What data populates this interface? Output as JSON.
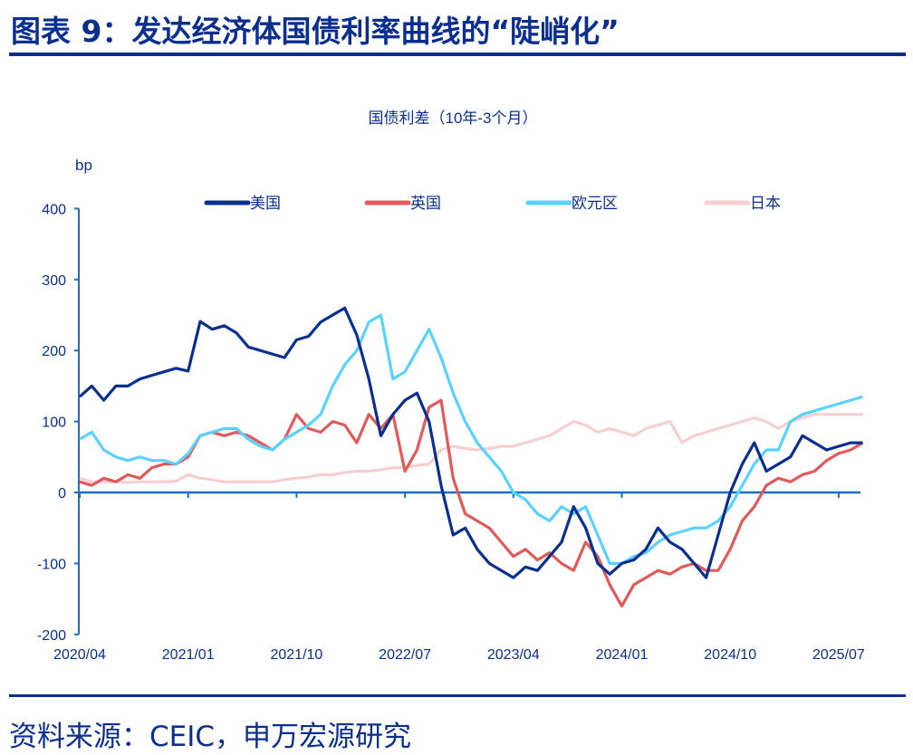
{
  "header": {
    "title": "图表 9：发达经济体国债利率曲线的“陡峭化”"
  },
  "footer": {
    "source": "资料来源：CEIC，申万宏源研究"
  },
  "chart_data": {
    "type": "line",
    "title": "国债利差（10年-3个月）",
    "ylabel": "bp",
    "ylim": [
      -200,
      400
    ],
    "yticks": [
      400,
      300,
      200,
      100,
      0,
      -100,
      -200
    ],
    "x_start": "2020/04",
    "x_end": "2025/09",
    "x_frequency": "monthly",
    "xticks": [
      "2020/04",
      "2021/01",
      "2021/10",
      "2022/07",
      "2023/04",
      "2024/01",
      "2024/10",
      "2025/07"
    ],
    "grid": false,
    "legend": "top",
    "series": [
      {
        "name": "美国",
        "color": "#0a2f8f",
        "values": [
          135,
          150,
          130,
          150,
          150,
          160,
          165,
          170,
          175,
          171,
          241,
          230,
          235,
          225,
          205,
          200,
          195,
          190,
          215,
          220,
          240,
          250,
          260,
          222,
          160,
          80,
          110,
          130,
          140,
          100,
          10,
          -60,
          -50,
          -80,
          -100,
          -110,
          -120,
          -105,
          -110,
          -90,
          -70,
          -20,
          -50,
          -100,
          -115,
          -100,
          -95,
          -80,
          -50,
          -70,
          -80,
          -100,
          -120,
          -60,
          0,
          40,
          70,
          30,
          40,
          50,
          80,
          70,
          60,
          65,
          70,
          70
        ]
      },
      {
        "name": "英国",
        "color": "#e05a5a",
        "values": [
          15,
          10,
          20,
          15,
          25,
          20,
          35,
          40,
          40,
          50,
          80,
          85,
          80,
          85,
          80,
          70,
          60,
          75,
          110,
          90,
          85,
          100,
          95,
          70,
          110,
          90,
          110,
          30,
          60,
          120,
          130,
          20,
          -30,
          -40,
          -50,
          -70,
          -90,
          -80,
          -95,
          -85,
          -100,
          -110,
          -70,
          -90,
          -130,
          -160,
          -130,
          -120,
          -110,
          -115,
          -105,
          -100,
          -110,
          -110,
          -80,
          -40,
          -20,
          10,
          20,
          15,
          25,
          30,
          45,
          55,
          60,
          70
        ]
      },
      {
        "name": "欧元区",
        "color": "#5ad2ff",
        "values": [
          75,
          85,
          60,
          50,
          45,
          50,
          45,
          45,
          40,
          55,
          80,
          85,
          90,
          90,
          75,
          65,
          60,
          75,
          85,
          95,
          110,
          150,
          180,
          200,
          240,
          250,
          160,
          170,
          200,
          230,
          190,
          140,
          100,
          70,
          50,
          30,
          0,
          -10,
          -30,
          -40,
          -20,
          -30,
          -20,
          -60,
          -100,
          -100,
          -90,
          -85,
          -70,
          -60,
          -55,
          -50,
          -50,
          -40,
          -20,
          10,
          40,
          60,
          60,
          100,
          110,
          115,
          120,
          125,
          130,
          135
        ]
      },
      {
        "name": "日本",
        "color": "#f8cfd0",
        "values": [
          20,
          15,
          15,
          15,
          14,
          15,
          15,
          15,
          16,
          25,
          20,
          18,
          15,
          15,
          15,
          15,
          15,
          18,
          20,
          22,
          25,
          25,
          28,
          30,
          30,
          32,
          35,
          35,
          38,
          40,
          60,
          65,
          62,
          60,
          62,
          65,
          65,
          70,
          75,
          80,
          90,
          100,
          95,
          85,
          90,
          85,
          80,
          90,
          95,
          100,
          70,
          80,
          85,
          90,
          95,
          100,
          105,
          100,
          90,
          100,
          105,
          110,
          110,
          110,
          110,
          110
        ]
      }
    ]
  }
}
